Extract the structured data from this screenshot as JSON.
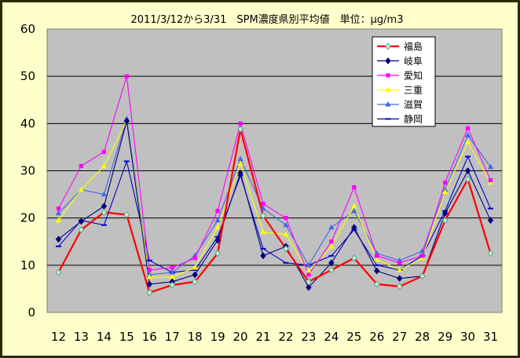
{
  "chart_data": {
    "type": "line",
    "title": "2011/3/12から3/31　SPM濃度県別平均値　単位：μg/m3",
    "xlabel": "",
    "ylabel": "",
    "ylim": [
      0,
      60
    ],
    "y_ticks": [
      0,
      10,
      20,
      30,
      40,
      50,
      60
    ],
    "grid": "horizontal",
    "legend_position": "top-right",
    "x": [
      12,
      13,
      14,
      15,
      16,
      17,
      18,
      19,
      20,
      21,
      22,
      23,
      24,
      25,
      26,
      27,
      28,
      29,
      30,
      31
    ],
    "series": [
      {
        "name": "福島",
        "color": "#ff0000",
        "marker": "diamond-open",
        "marker_color": "#5f9ea0",
        "values": [
          8.5,
          17.5,
          21.2,
          20.7,
          4.2,
          5.8,
          6.5,
          12.5,
          38.8,
          20.5,
          13.5,
          6.5,
          9,
          11.5,
          6,
          5.5,
          7.7,
          19.5,
          28.2,
          12.5
        ]
      },
      {
        "name": "岐阜",
        "color": "#000080",
        "marker": "diamond",
        "marker_color": "#000080",
        "values": [
          15.5,
          19.3,
          22.5,
          40.5,
          6,
          6.5,
          8,
          15.3,
          29.5,
          12,
          14,
          5.3,
          10.5,
          18,
          8.8,
          7.2,
          7.7,
          21,
          30,
          19.5
        ]
      },
      {
        "name": "愛知",
        "color": "#ff00ff",
        "marker": "square",
        "marker_color": "#ff00ff",
        "values": [
          22,
          31,
          34,
          50,
          9,
          9.5,
          11.5,
          21.5,
          40,
          23,
          20,
          8,
          15,
          26.5,
          12,
          10.5,
          12,
          27.5,
          39,
          28
        ]
      },
      {
        "name": "三重",
        "color": "#ffff00",
        "marker": "triangle",
        "marker_color": "#ffff00",
        "values": [
          19.5,
          26,
          31,
          40.5,
          7.5,
          7.5,
          9.5,
          18,
          31.5,
          17,
          16.5,
          8.7,
          14,
          22.5,
          11.2,
          9,
          11.5,
          25.5,
          36,
          27.5
        ]
      },
      {
        "name": "滋賀",
        "color": "#4169e1",
        "marker": "triangle",
        "marker_color": "#4169e1",
        "values": [
          21,
          26,
          25,
          41,
          8,
          8.5,
          12,
          19.5,
          32.5,
          22,
          18.5,
          10,
          18,
          21.5,
          12.5,
          11,
          13,
          26,
          37.5,
          30.8
        ]
      },
      {
        "name": "静岡",
        "color": "#0000cd",
        "marker": "dash",
        "marker_color": "#0000cd",
        "values": [
          14,
          19.5,
          18.5,
          32,
          11,
          8.5,
          9,
          16,
          29,
          13.5,
          10.5,
          10,
          12,
          17.5,
          10,
          9,
          12,
          21.5,
          33,
          22
        ]
      }
    ]
  }
}
